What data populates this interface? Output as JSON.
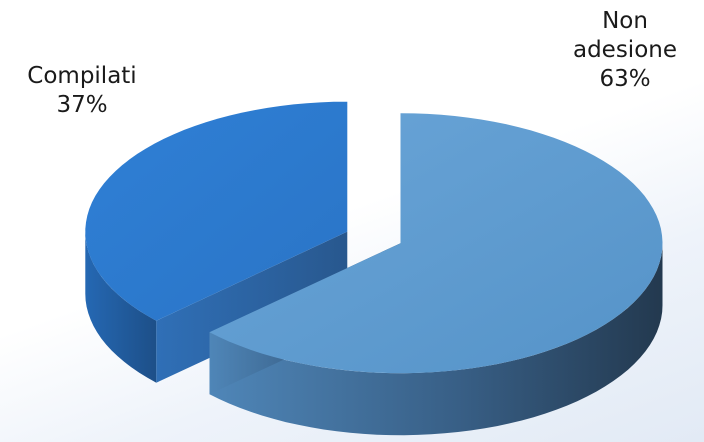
{
  "chart_data": {
    "type": "pie",
    "style": "3d-exploded",
    "series": [
      {
        "values": [
          37,
          63
        ],
        "labels": [
          "Compilati",
          "Non adesione"
        ],
        "value_labels": [
          "37%",
          "63%"
        ],
        "colors": [
          "#2e7bd0",
          "#5b99cc"
        ]
      }
    ],
    "legend": "none",
    "grid": false
  }
}
